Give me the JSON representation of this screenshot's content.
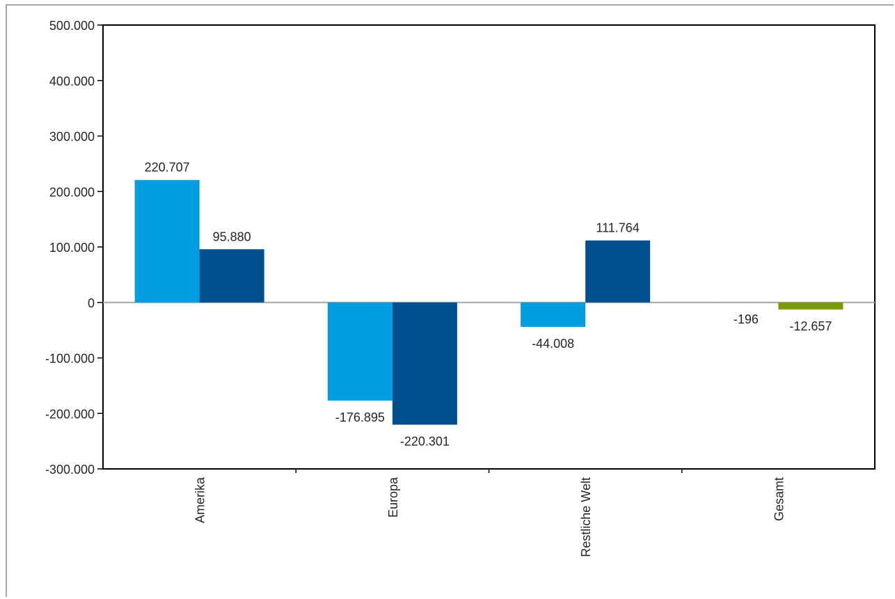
{
  "chart_data": {
    "type": "bar",
    "categories": [
      "Amerika",
      "Europa",
      "Restliche Welt",
      "Gesamt"
    ],
    "series": [
      {
        "color": "#009ee0",
        "values": [
          220707,
          -176895,
          -44008,
          -196
        ]
      },
      {
        "color": "#00508f",
        "values": [
          95880,
          -220301,
          111764,
          -12657
        ]
      }
    ],
    "gesamt_second_color": "#7a9a01",
    "data_labels": [
      [
        "220.707",
        "-176.895",
        "-44.008",
        "-196"
      ],
      [
        "95.880",
        "-220.301",
        "111.764",
        "-12.657"
      ]
    ],
    "yticks": [
      500000,
      400000,
      300000,
      200000,
      100000,
      0,
      -100000,
      -200000,
      -300000
    ],
    "ytick_labels": [
      "500.000",
      "400.000",
      "300.000",
      "200.000",
      "100.000",
      "0",
      "-100.000",
      "-200.000",
      "-300.000"
    ],
    "ylim": [
      -300000,
      500000
    ],
    "grid": false,
    "legend": "none"
  }
}
